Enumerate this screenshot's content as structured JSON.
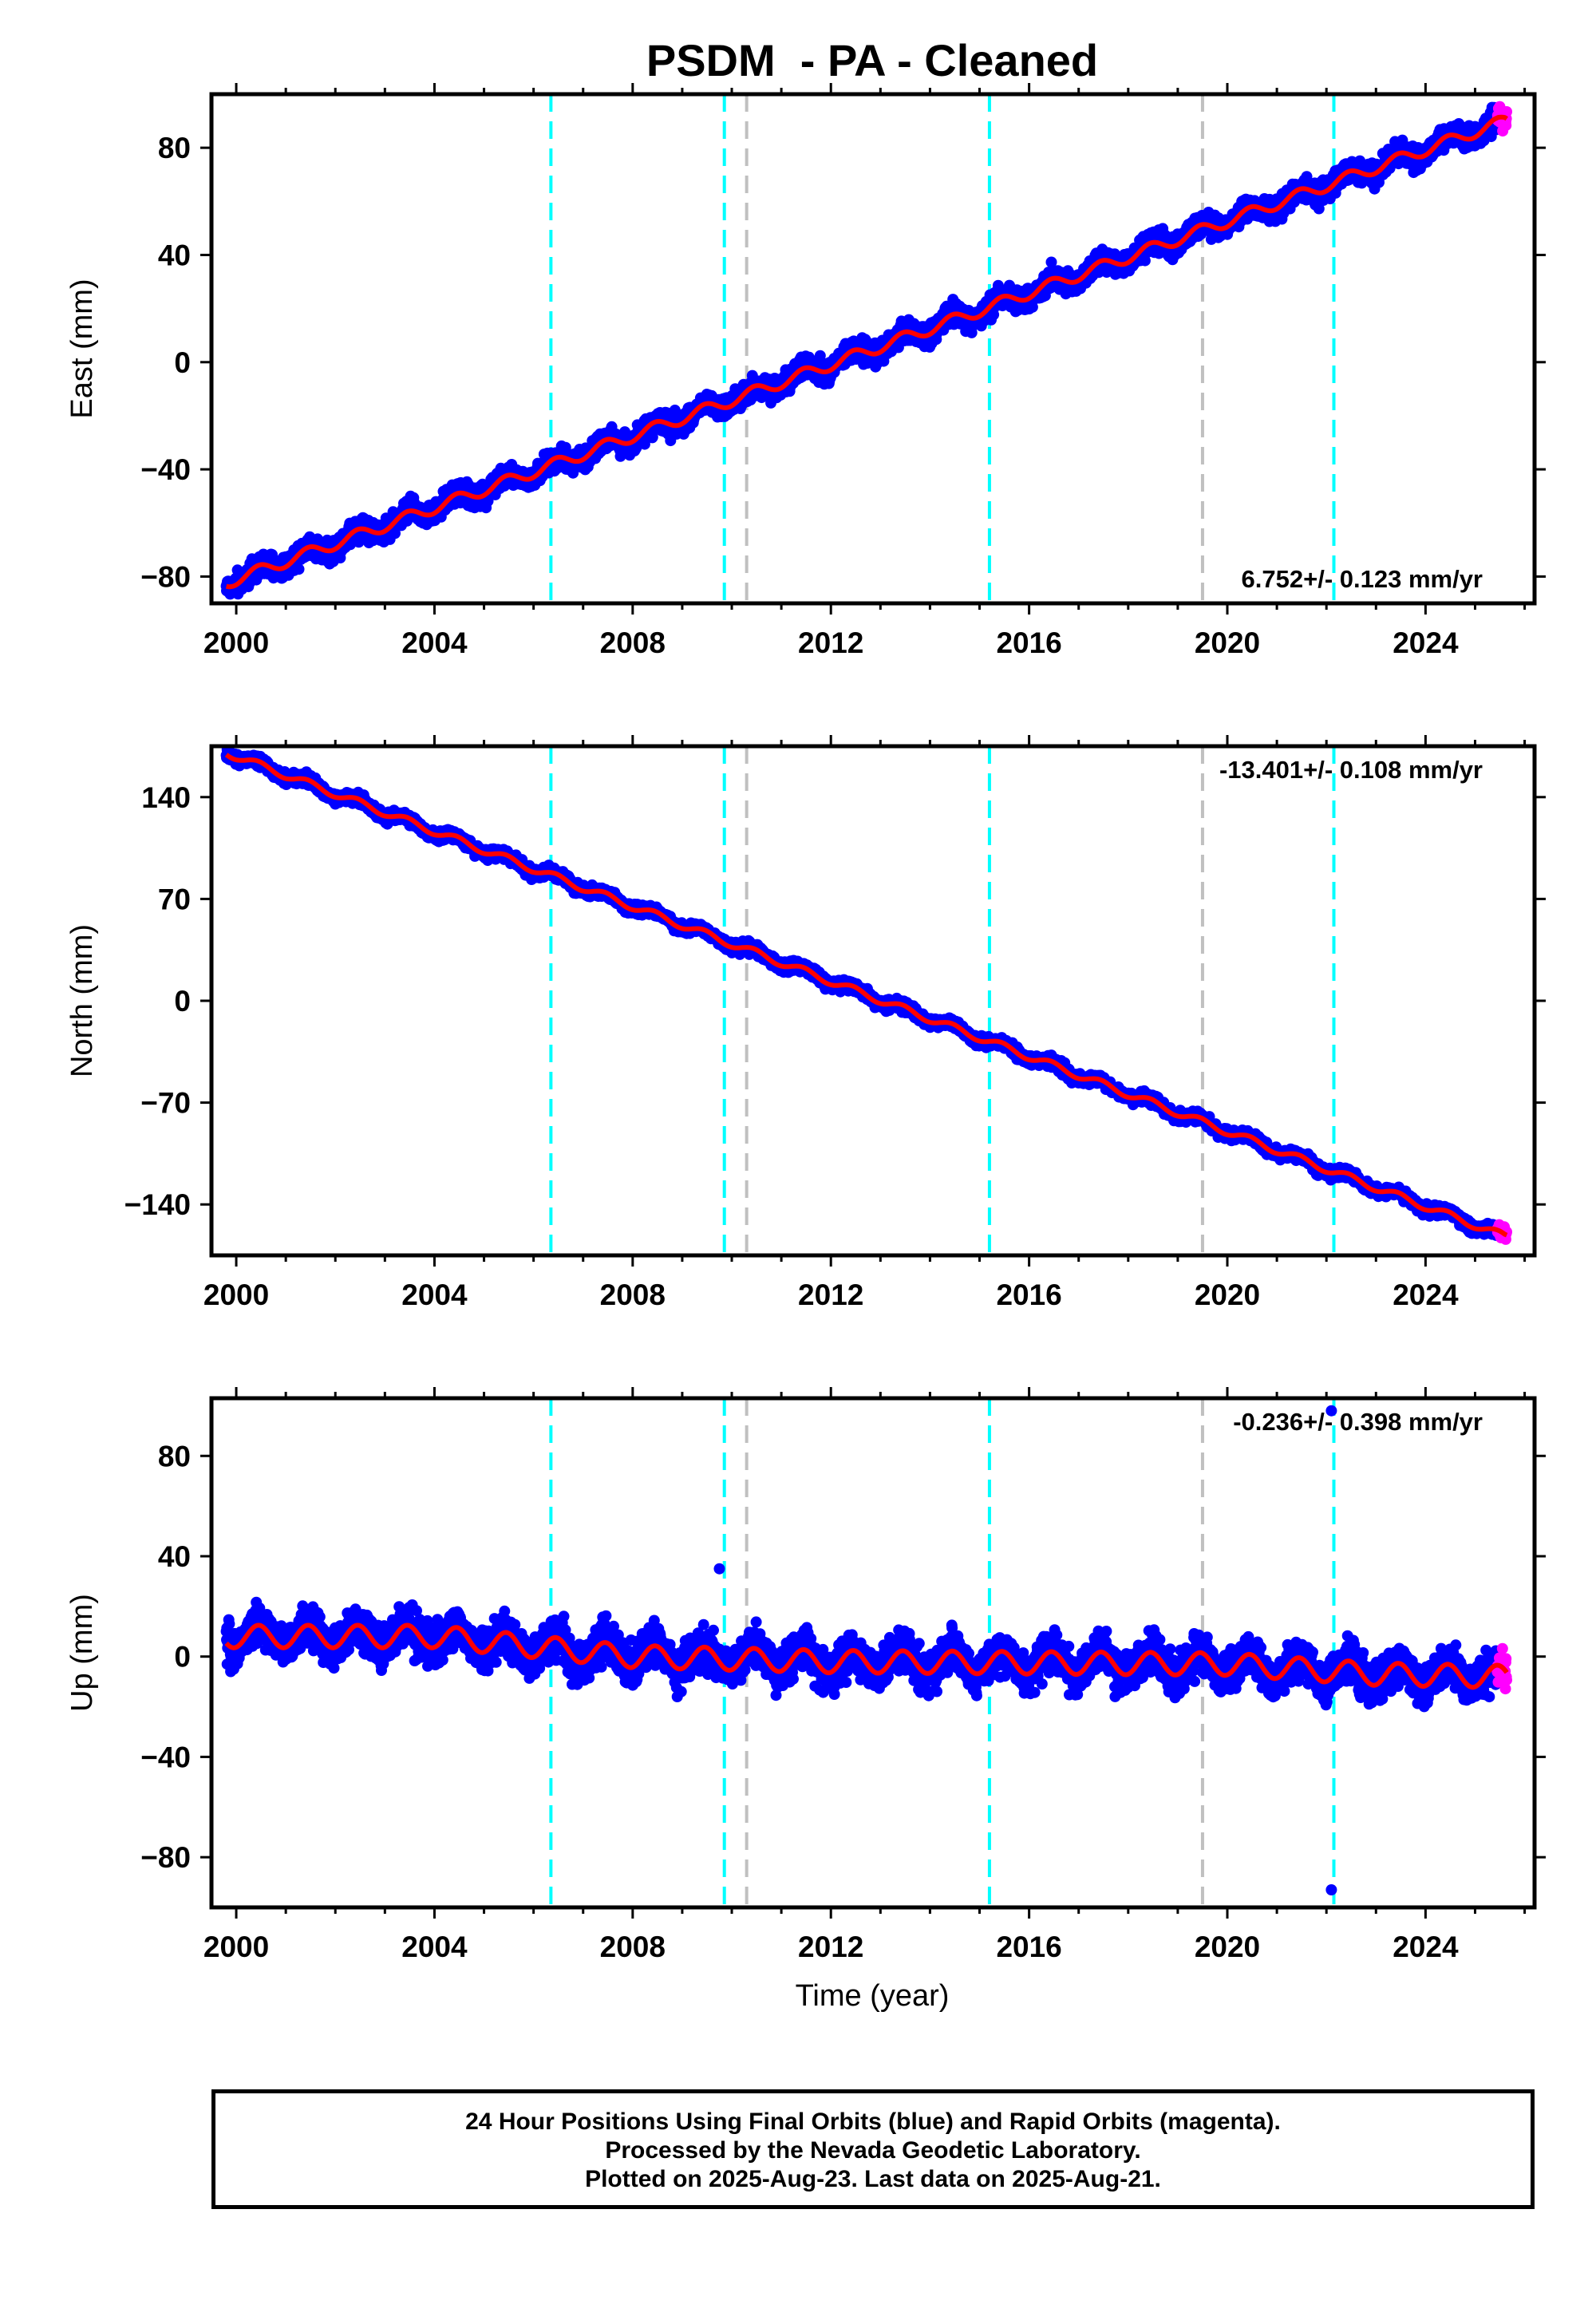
{
  "title": "PSDM  - PA - Cleaned",
  "xlabel": "Time (year)",
  "footer": {
    "line1": "24 Hour Positions Using Final Orbits (blue) and Rapid Orbits (magenta).",
    "line2": "Processed by the Nevada Geodetic Laboratory.",
    "line3": "Plotted on 2025-Aug-23. Last data on 2025-Aug-21."
  },
  "colors": {
    "final": "#0000ff",
    "rapid": "#ff00ff",
    "model": "#ff0000",
    "equipment_change": "#00ffff",
    "other_event": "#c0c0c0"
  },
  "chart_data": [
    {
      "type": "scatter",
      "component": "east",
      "ylabel": "East (mm)",
      "xlim": [
        1999.5,
        2026.2
      ],
      "ylim": [
        -90,
        100
      ],
      "xticks": [
        2000,
        2004,
        2008,
        2012,
        2016,
        2020,
        2024
      ],
      "yticks": [
        -80,
        -40,
        0,
        40,
        80
      ],
      "rate_label": "6.752+/- 0.123 mm/yr",
      "rate": 6.752,
      "intercept_2012": 0.0,
      "seasonal_amp": 2.2,
      "scatter": 2.8,
      "start": 1999.8,
      "end": 2025.64,
      "rapid_start": 2025.45,
      "steps": [
        {
          "year": 2000.0,
          "value": -81
        },
        {
          "year": 2025.6,
          "value": 90
        }
      ],
      "equipment_changes": [
        2006.35,
        2009.85,
        2015.2,
        2022.15
      ],
      "other_events": [
        2010.3,
        2019.5
      ],
      "outliers": []
    },
    {
      "type": "scatter",
      "component": "north",
      "ylabel": "North (mm)",
      "xlim": [
        1999.5,
        2026.2
      ],
      "ylim": [
        -175,
        175
      ],
      "xticks": [
        2000,
        2004,
        2008,
        2012,
        2016,
        2020,
        2024
      ],
      "yticks": [
        -140,
        -70,
        0,
        70,
        140
      ],
      "rate_label": "-13.401+/- 0.108 mm/yr",
      "rate": -13.401,
      "intercept_2012": 16,
      "seasonal_amp": 2.5,
      "scatter": 2.5,
      "start": 1999.8,
      "end": 2025.64,
      "rapid_start": 2025.45,
      "steps": [
        {
          "year": 2000.0,
          "value": 168
        },
        {
          "year": 2025.6,
          "value": -162
        }
      ],
      "equipment_changes": [
        2006.35,
        2009.85,
        2015.2,
        2022.15
      ],
      "other_events": [
        2010.3,
        2019.5
      ],
      "outliers": []
    },
    {
      "type": "scatter",
      "component": "up",
      "ylabel": "Up (mm)",
      "xlim": [
        1999.5,
        2026.2
      ],
      "ylim": [
        -100,
        103
      ],
      "xticks": [
        2000,
        2004,
        2008,
        2012,
        2016,
        2020,
        2024
      ],
      "yticks": [
        -80,
        -40,
        0,
        40,
        80
      ],
      "rate_label": "-0.236+/- 0.398 mm/yr",
      "rate": -0.236,
      "intercept_2012": -2,
      "seasonal_amp": 4.5,
      "scatter": 5.5,
      "start": 1999.8,
      "end": 2025.64,
      "rapid_start": 2025.45,
      "steps": [
        {
          "year": 2000.0,
          "value": 8
        },
        {
          "year": 2004.0,
          "value": 8
        },
        {
          "year": 2008.0,
          "value": 0
        },
        {
          "year": 2012.0,
          "value": -2
        },
        {
          "year": 2020.0,
          "value": -3
        },
        {
          "year": 2023.0,
          "value": -7
        },
        {
          "year": 2025.6,
          "value": -8
        }
      ],
      "equipment_changes": [
        2006.35,
        2009.85,
        2015.2,
        2022.15
      ],
      "other_events": [
        2010.3,
        2019.5
      ],
      "outliers": [
        {
          "year": 2009.75,
          "value": 35
        },
        {
          "year": 2008.9,
          "value": -16
        },
        {
          "year": 2022.1,
          "value": 98
        },
        {
          "year": 2022.1,
          "value": -93
        }
      ]
    }
  ]
}
